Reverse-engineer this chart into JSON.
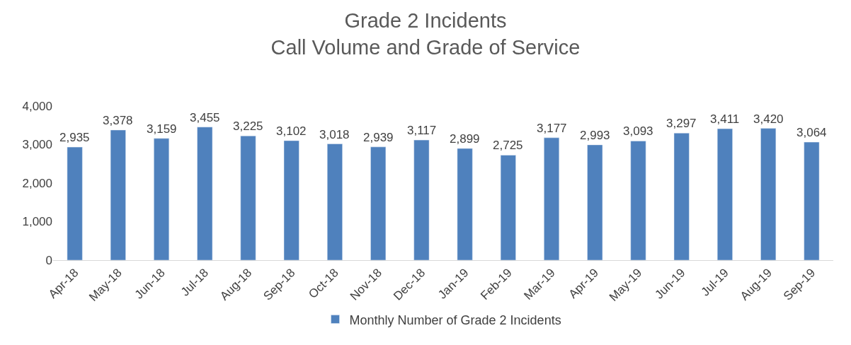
{
  "chart_data": {
    "type": "bar",
    "title": "Grade 2 Incidents\nCall Volume and Grade of Service",
    "categories": [
      "Apr-18",
      "May-18",
      "Jun-18",
      "Jul-18",
      "Aug-18",
      "Sep-18",
      "Oct-18",
      "Nov-18",
      "Dec-18",
      "Jan-19",
      "Feb-19",
      "Mar-19",
      "Apr-19",
      "May-19",
      "Jun-19",
      "Jul-19",
      "Aug-19",
      "Sep-19"
    ],
    "series": [
      {
        "name": "Monthly Number of Grade 2 Incidents",
        "color": "#4f81bd",
        "values": [
          2935,
          3378,
          3159,
          3455,
          3225,
          3102,
          3018,
          2939,
          3117,
          2899,
          2725,
          3177,
          2993,
          3093,
          3297,
          3411,
          3420,
          3064
        ],
        "value_labels": [
          "2,935",
          "3,378",
          "3,159",
          "3,455",
          "3,225",
          "3,102",
          "3,018",
          "2,939",
          "3,117",
          "2,899",
          "2,725",
          "3,177",
          "2,993",
          "3,093",
          "3,297",
          "3,411",
          "3,420",
          "3,064"
        ]
      }
    ],
    "ylim": [
      0,
      4000
    ],
    "yticks": [
      0,
      {
        "value": 1000,
        "label": "1,000"
      },
      {
        "value": 2000,
        "label": "2,000"
      },
      {
        "value": 3000,
        "label": "3,000"
      },
      {
        "value": 4000,
        "label": "4,000"
      }
    ],
    "legend": "bottom",
    "grid": false
  }
}
